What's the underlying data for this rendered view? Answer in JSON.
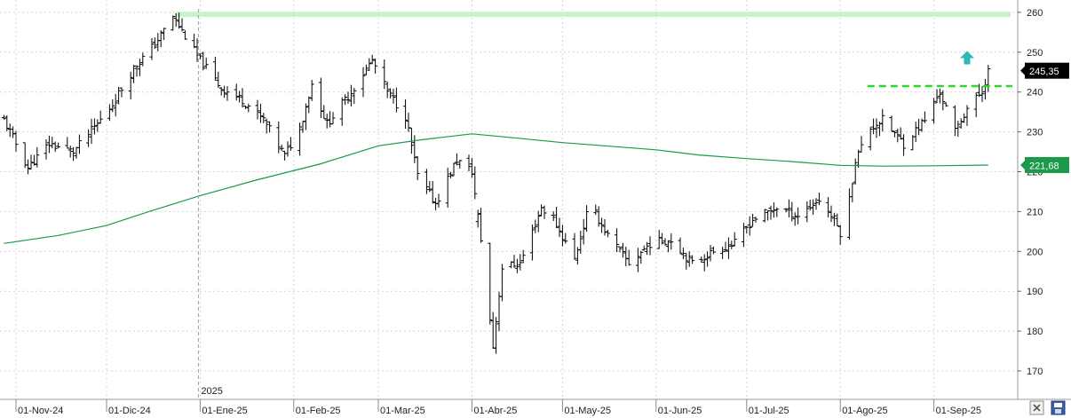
{
  "chart_data": {
    "type": "ohlc",
    "xlabel": "",
    "ylabel": "",
    "year_marker": "2025",
    "x_labels": [
      "01-Nov-24",
      "01-Dic-24",
      "01-Ene-25",
      "01-Feb-25",
      "01-Mar-25",
      "01-Abr-25",
      "01-May-25",
      "01-Jun-25",
      "01-Jul-25",
      "01-Ago-25",
      "01-Sep-25"
    ],
    "yticks": [
      170,
      180,
      190,
      200,
      210,
      220,
      230,
      240,
      250,
      260
    ],
    "ylim": [
      165,
      263
    ],
    "grid": true,
    "last_price_label": "245,35",
    "moving_average_label": "221,68",
    "resistance_level": 259.5,
    "breakout_level": 241.5,
    "colors": {
      "bars": "#000000",
      "moving_average": "#1a9a4a",
      "ma_badge": "#1a9a4a",
      "price_badge": "#000000",
      "resistance_band": "#c9f3c9",
      "breakout_line": "#22dd22",
      "arrow": "#2ab8b8"
    },
    "icons": [
      "up-arrow-icon",
      "close-square-icon",
      "save-icon"
    ],
    "price_path": [
      [
        "2024-10-28",
        233
      ],
      [
        "2024-11-01",
        227
      ],
      [
        "2024-11-05",
        221
      ],
      [
        "2024-11-12",
        227
      ],
      [
        "2024-11-20",
        225
      ],
      [
        "2024-11-28",
        232
      ],
      [
        "2024-12-03",
        237
      ],
      [
        "2024-12-10",
        246
      ],
      [
        "2024-12-17",
        252
      ],
      [
        "2024-12-23",
        259
      ],
      [
        "2024-12-31",
        249
      ],
      [
        "2025-01-08",
        241
      ],
      [
        "2025-01-15",
        238
      ],
      [
        "2025-01-22",
        233
      ],
      [
        "2025-01-29",
        224
      ],
      [
        "2025-02-03",
        231
      ],
      [
        "2025-02-07",
        242
      ],
      [
        "2025-02-12",
        232
      ],
      [
        "2025-02-20",
        240
      ],
      [
        "2025-02-27",
        248
      ],
      [
        "2025-03-04",
        240
      ],
      [
        "2025-03-10",
        234
      ],
      [
        "2025-03-14",
        219
      ],
      [
        "2025-03-20",
        212
      ],
      [
        "2025-03-27",
        223
      ],
      [
        "2025-04-01",
        220
      ],
      [
        "2025-04-04",
        203
      ],
      [
        "2025-04-08",
        176
      ],
      [
        "2025-04-11",
        196
      ],
      [
        "2025-04-17",
        197
      ],
      [
        "2025-04-24",
        211
      ],
      [
        "2025-04-28",
        208
      ],
      [
        "2025-05-05",
        198
      ],
      [
        "2025-05-10",
        212
      ],
      [
        "2025-05-16",
        204
      ],
      [
        "2025-05-23",
        197
      ],
      [
        "2025-05-30",
        202
      ],
      [
        "2025-06-06",
        203
      ],
      [
        "2025-06-13",
        197
      ],
      [
        "2025-06-20",
        200
      ],
      [
        "2025-06-27",
        202
      ],
      [
        "2025-07-03",
        208
      ],
      [
        "2025-07-11",
        211
      ],
      [
        "2025-07-18",
        209
      ],
      [
        "2025-07-25",
        213
      ],
      [
        "2025-07-30",
        208
      ],
      [
        "2025-08-02",
        203
      ],
      [
        "2025-08-06",
        223
      ],
      [
        "2025-08-11",
        231
      ],
      [
        "2025-08-15",
        233
      ],
      [
        "2025-08-22",
        227
      ],
      [
        "2025-08-29",
        233
      ],
      [
        "2025-09-03",
        240
      ],
      [
        "2025-09-08",
        230
      ],
      [
        "2025-09-12",
        236
      ],
      [
        "2025-09-17",
        240
      ],
      [
        "2025-09-19",
        245.35
      ]
    ],
    "moving_average": [
      [
        "2024-10-28",
        202
      ],
      [
        "2024-11-15",
        204
      ],
      [
        "2024-12-01",
        206.5
      ],
      [
        "2024-12-15",
        210
      ],
      [
        "2025-01-01",
        214
      ],
      [
        "2025-01-20",
        218
      ],
      [
        "2025-02-10",
        222
      ],
      [
        "2025-03-01",
        226.5
      ],
      [
        "2025-03-15",
        228
      ],
      [
        "2025-04-01",
        229.5
      ],
      [
        "2025-04-15",
        228.5
      ],
      [
        "2025-05-01",
        227.3
      ],
      [
        "2025-05-15",
        226.5
      ],
      [
        "2025-06-01",
        225.5
      ],
      [
        "2025-06-15",
        224.2
      ],
      [
        "2025-07-01",
        223.3
      ],
      [
        "2025-07-15",
        222.6
      ],
      [
        "2025-08-01",
        221.6
      ],
      [
        "2025-08-15",
        221.4
      ],
      [
        "2025-09-01",
        221.5
      ],
      [
        "2025-09-19",
        221.68
      ]
    ]
  }
}
